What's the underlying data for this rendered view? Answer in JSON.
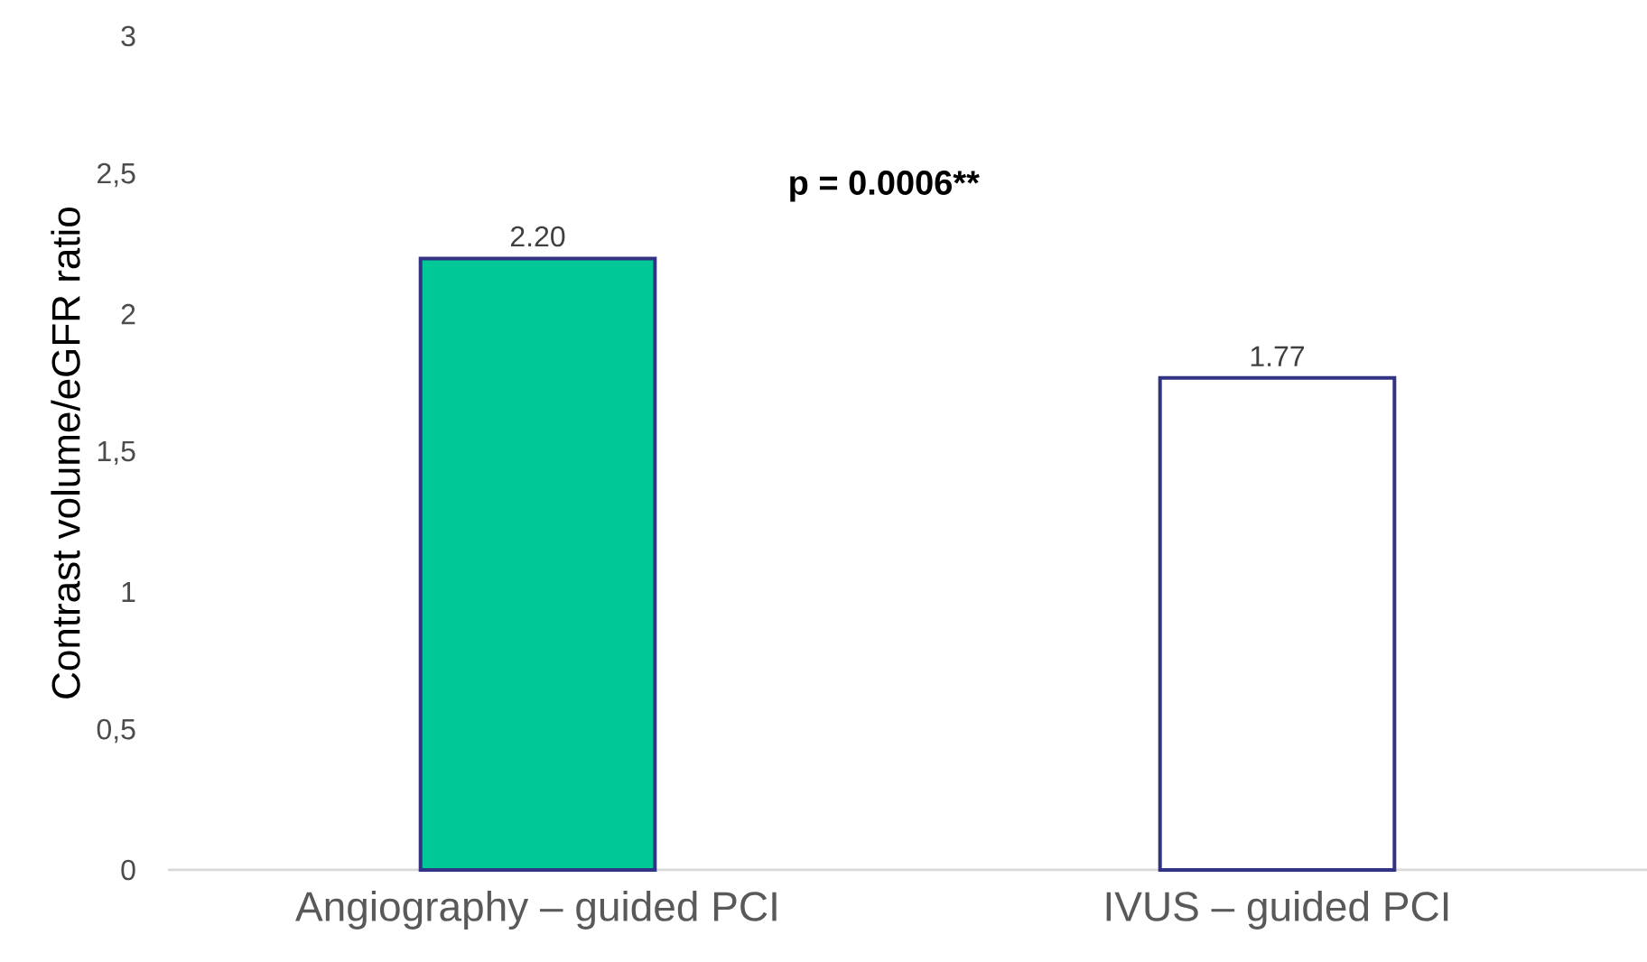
{
  "chart_data": {
    "type": "bar",
    "ylabel": "Contrast volume/eGFR ratio",
    "categories": [
      "Angiography –  guided PCI",
      "IVUS – guided PCI"
    ],
    "values": [
      2.2,
      1.77
    ],
    "value_labels": [
      "2.20",
      "1.77"
    ],
    "colors": [
      "#00c997",
      "#ffffff"
    ],
    "ylim": [
      0,
      3
    ],
    "yticks": [
      0,
      {
        "value": 0.5,
        "label": "0,5"
      },
      1,
      {
        "value": 1.5,
        "label": "1,5"
      },
      2,
      {
        "value": 2.5,
        "label": "2,5"
      },
      3
    ],
    "annotations": [
      "p = 0.0006**"
    ]
  }
}
